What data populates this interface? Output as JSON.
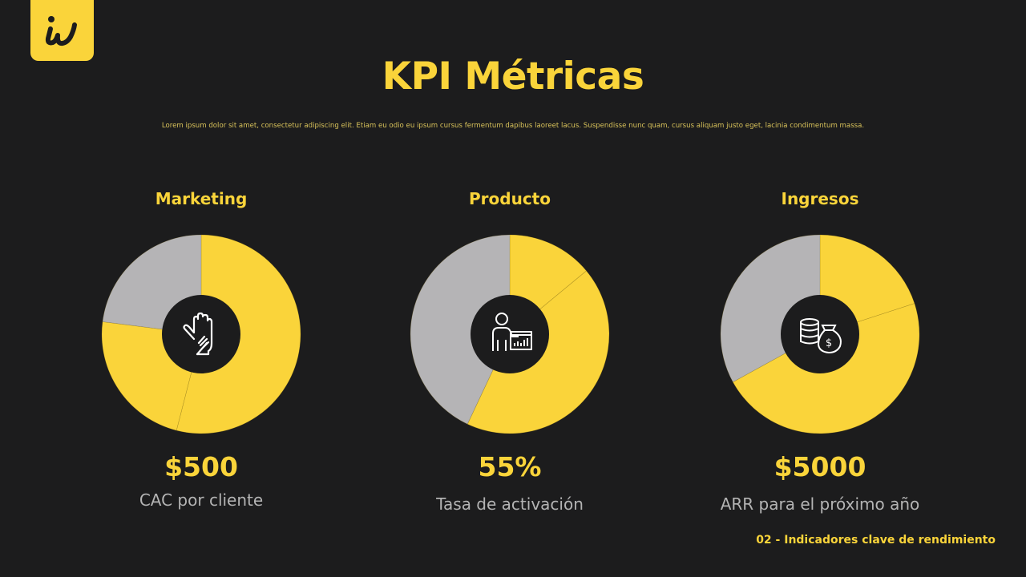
{
  "header": {
    "title": "KPI Métricas",
    "subtitle": "Lorem ipsum dolor sit amet, consectetur adipiscing elit. Etiam eu odio eu ipsum cursus fermentum dapibus laoreet lacus. Suspendisse nunc quam, cursus aliquam justo eget, lacinia condimentum massa."
  },
  "logo": {
    "text": "iw"
  },
  "footer": {
    "text": "02 - Indicadores clave de rendimiento"
  },
  "colors": {
    "background": "#1c1c1d",
    "accent": "#fad43a",
    "gray": "#b5b4b6"
  },
  "chart_data": [
    {
      "type": "pie",
      "title": "Marketing",
      "icon": "hand-icon",
      "values": [
        54,
        23,
        23
      ],
      "colors": [
        "#fad43a",
        "#fad43a",
        "#b5b4b6"
      ],
      "kpi_value": "$500",
      "kpi_label": "CAC por cliente"
    },
    {
      "type": "pie",
      "title": "Producto",
      "icon": "presenter-chart-icon",
      "values": [
        14,
        43,
        43
      ],
      "colors": [
        "#fad43a",
        "#fad43a",
        "#b5b4b6"
      ],
      "kpi_value": "55%",
      "kpi_label": "Tasa de activación"
    },
    {
      "type": "pie",
      "title": "Ingresos",
      "icon": "money-coins-icon",
      "values": [
        20,
        47,
        33
      ],
      "colors": [
        "#fad43a",
        "#fad43a",
        "#b5b4b6"
      ],
      "kpi_value": "$5000",
      "kpi_label": "ARR para el próximo año"
    }
  ]
}
